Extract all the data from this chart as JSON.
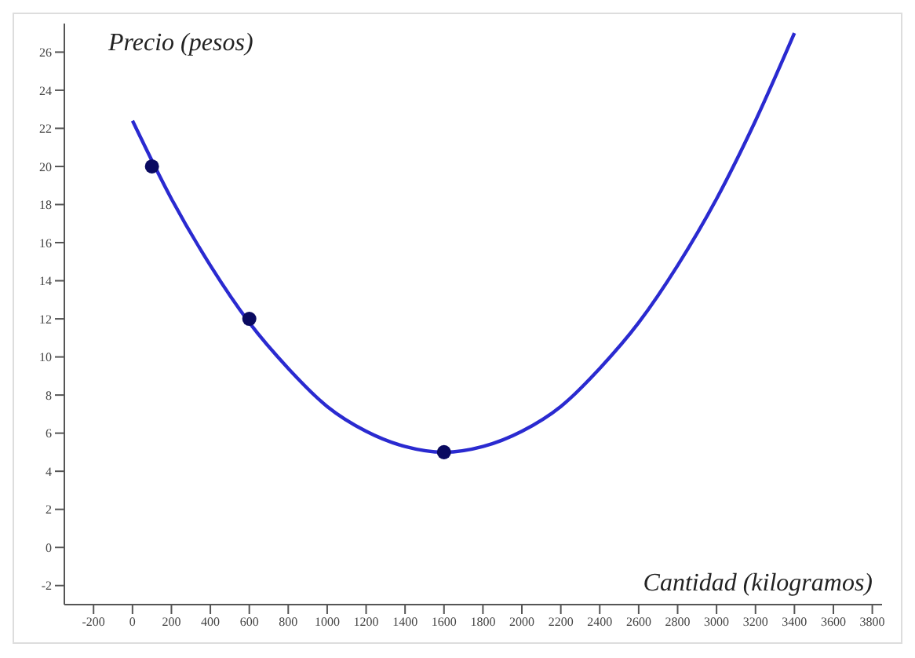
{
  "chart_data": {
    "type": "line",
    "xlabel": "Cantidad (kilogramos)",
    "ylabel": "Precio (pesos)",
    "xlim": [
      -350,
      3850
    ],
    "ylim": [
      -3,
      27.5
    ],
    "xticks": [
      -200,
      0,
      200,
      400,
      600,
      800,
      1000,
      1200,
      1400,
      1600,
      1800,
      2000,
      2200,
      2400,
      2600,
      2800,
      3000,
      3200,
      3400,
      3600,
      3800
    ],
    "yticks": [
      -2,
      0,
      2,
      4,
      6,
      8,
      10,
      12,
      14,
      16,
      18,
      20,
      22,
      24,
      26
    ],
    "grid": false,
    "series": [
      {
        "color": "#2a2ad0",
        "marker": "none",
        "x": [
          0,
          200,
          400,
          600,
          800,
          1000,
          1200,
          1400,
          1600,
          1800,
          2000,
          2200,
          2400,
          2600,
          2800,
          3000,
          3200,
          3400
        ],
        "values": [
          22.4,
          18.3,
          14.8,
          11.8,
          9.4,
          7.4,
          6.1,
          5.3,
          5,
          5.3,
          6.1,
          7.4,
          9.4,
          11.8,
          14.8,
          18.3,
          22.4,
          27
        ]
      },
      {
        "type": "scatter",
        "color": "#0a0a60",
        "marker": "circle",
        "x": [
          100,
          600,
          1600
        ],
        "values": [
          20,
          12,
          5
        ]
      }
    ]
  }
}
